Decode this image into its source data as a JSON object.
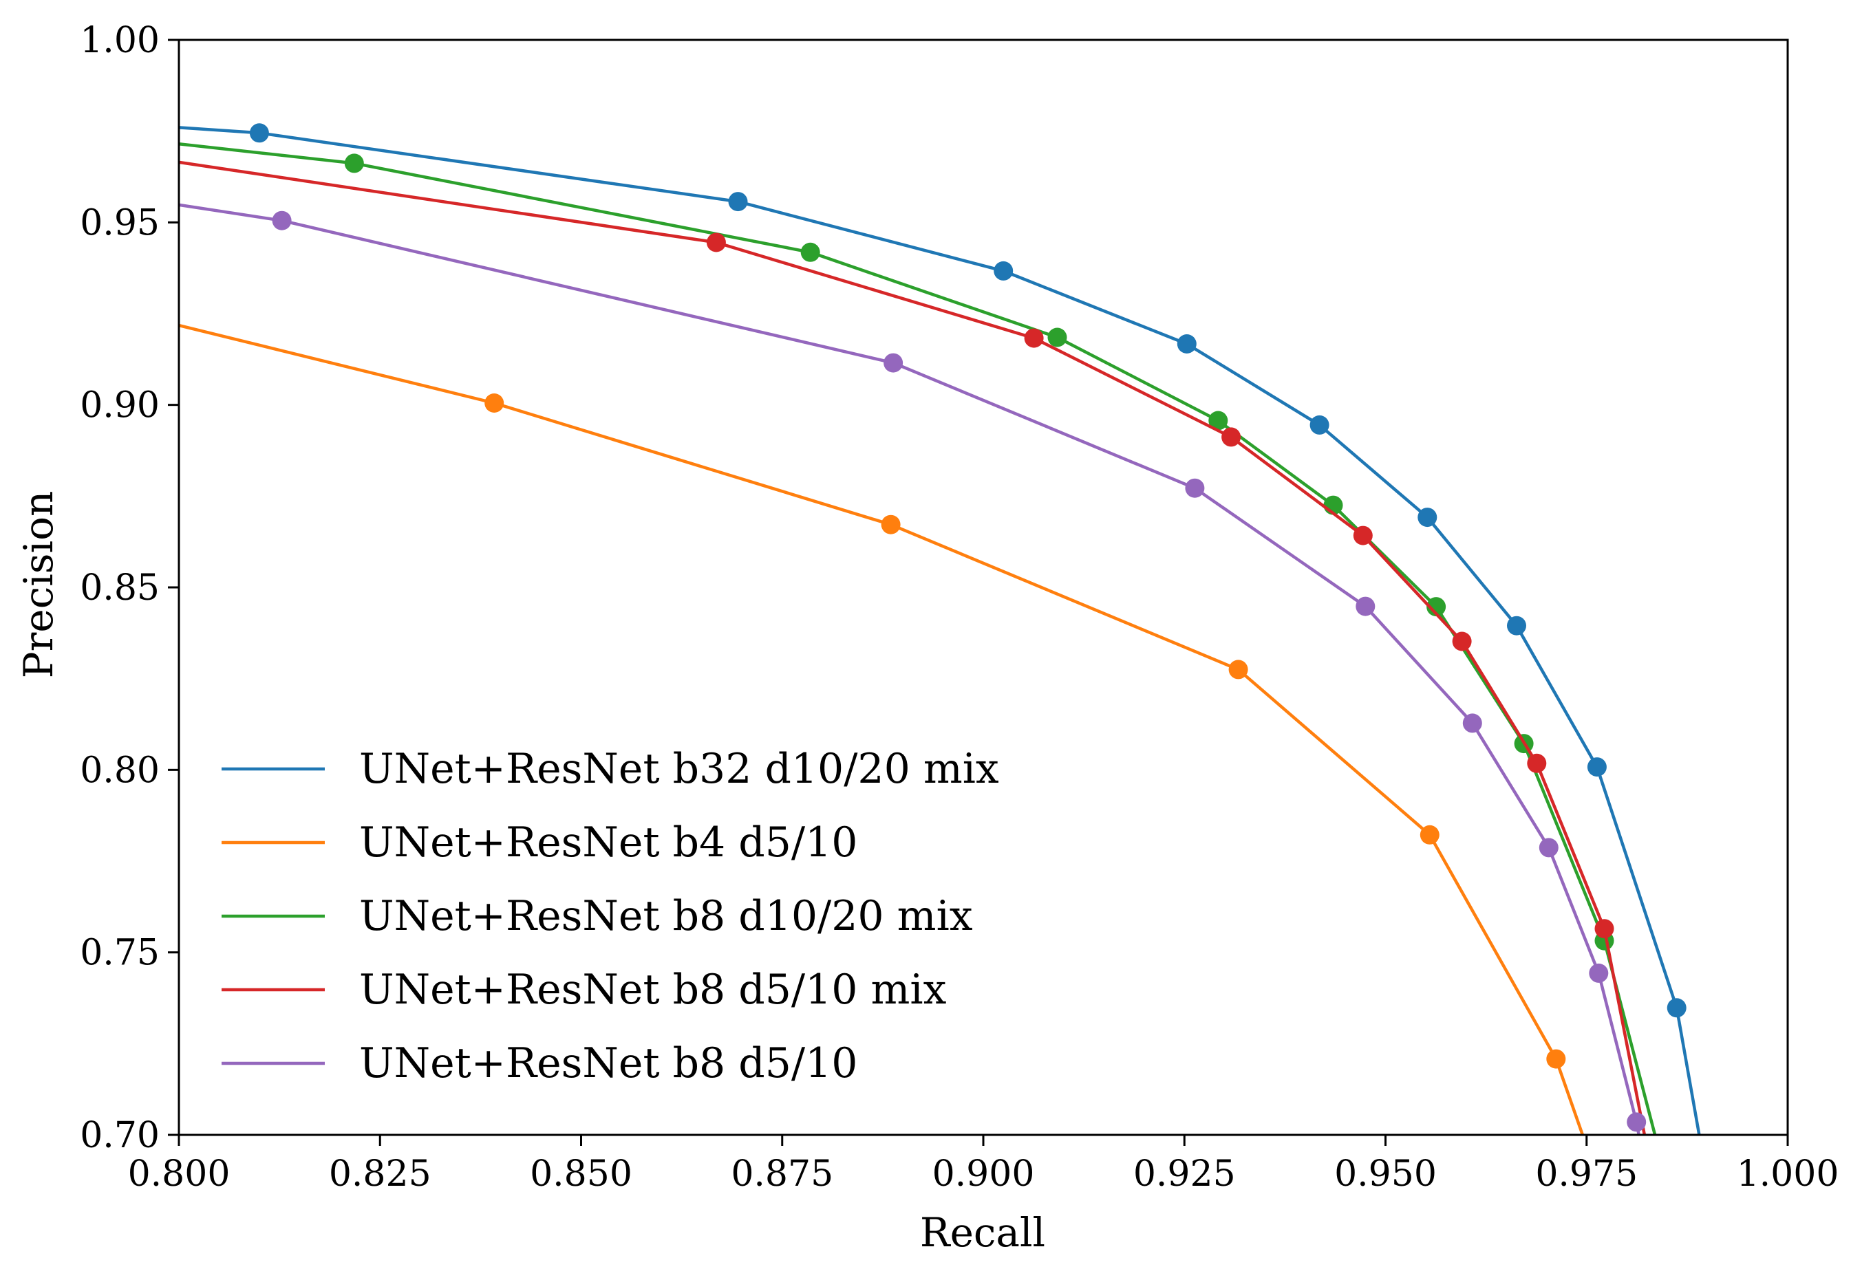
{
  "chart_data": {
    "type": "line",
    "title": "",
    "xlabel": "Recall",
    "ylabel": "Precision",
    "xlim": [
      0.8,
      1.0
    ],
    "ylim": [
      0.7,
      1.0
    ],
    "xticks": [
      "0.800",
      "0.825",
      "0.850",
      "0.875",
      "0.900",
      "0.925",
      "0.950",
      "0.975",
      "1.000"
    ],
    "yticks": [
      "0.70",
      "0.75",
      "0.80",
      "0.85",
      "0.90",
      "0.95",
      "1.00"
    ],
    "grid": false,
    "legend_position": "lower-left",
    "markers": "circle",
    "series": [
      {
        "name": "UNet+ResNet b32 d10/20 mix",
        "color": "#1f77b4",
        "points": [
          [
            0.8,
            0.976
          ],
          [
            0.81,
            0.9745
          ],
          [
            0.8695,
            0.9557
          ],
          [
            0.9025,
            0.9367
          ],
          [
            0.9253,
            0.9167
          ],
          [
            0.9418,
            0.8945
          ],
          [
            0.9552,
            0.8692
          ],
          [
            0.9663,
            0.8395
          ],
          [
            0.9763,
            0.8008
          ],
          [
            0.9862,
            0.7348
          ],
          [
            0.989,
            0.7
          ]
        ]
      },
      {
        "name": "UNet+ResNet b4 d5/10",
        "color": "#ff7f0e",
        "points": [
          [
            0.8,
            0.9218
          ],
          [
            0.8392,
            0.9005
          ],
          [
            0.8885,
            0.8672
          ],
          [
            0.9317,
            0.8275
          ],
          [
            0.9555,
            0.7822
          ],
          [
            0.9712,
            0.7208
          ],
          [
            0.9745,
            0.7
          ]
        ]
      },
      {
        "name": "UNet+ResNet b8 d10/20 mix",
        "color": "#2ca02c",
        "points": [
          [
            0.8,
            0.9715
          ],
          [
            0.8218,
            0.9662
          ],
          [
            0.8785,
            0.9418
          ],
          [
            0.9092,
            0.9185
          ],
          [
            0.9292,
            0.8957
          ],
          [
            0.9435,
            0.8725
          ],
          [
            0.9563,
            0.8447
          ],
          [
            0.9672,
            0.8072
          ],
          [
            0.9772,
            0.7532
          ],
          [
            0.9835,
            0.7
          ]
        ]
      },
      {
        "name": "UNet+ResNet b8 d5/10 mix",
        "color": "#d62728",
        "points": [
          [
            0.8,
            0.9665
          ],
          [
            0.8668,
            0.9445
          ],
          [
            0.9063,
            0.9183
          ],
          [
            0.9308,
            0.8912
          ],
          [
            0.9472,
            0.8642
          ],
          [
            0.9595,
            0.8352
          ],
          [
            0.9688,
            0.8018
          ],
          [
            0.9772,
            0.7565
          ],
          [
            0.9822,
            0.7
          ]
        ]
      },
      {
        "name": "UNet+ResNet b8 d5/10",
        "color": "#9467bd",
        "points": [
          [
            0.8,
            0.9548
          ],
          [
            0.8128,
            0.9505
          ],
          [
            0.8888,
            0.9115
          ],
          [
            0.9263,
            0.8772
          ],
          [
            0.9475,
            0.8448
          ],
          [
            0.9608,
            0.8128
          ],
          [
            0.9703,
            0.7787
          ],
          [
            0.9765,
            0.7443
          ],
          [
            0.9812,
            0.7035
          ],
          [
            0.9815,
            0.7
          ]
        ]
      }
    ]
  }
}
